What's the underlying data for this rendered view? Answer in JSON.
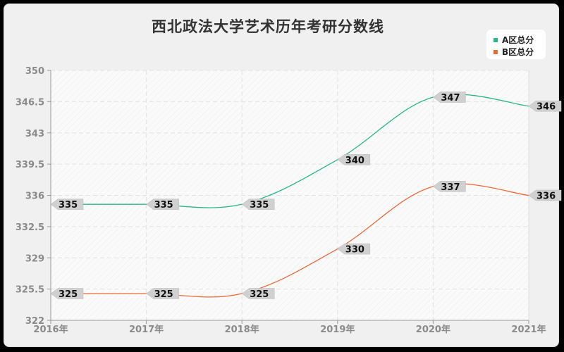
{
  "title": "西北政法大学艺术历年考研分数线",
  "legend": [
    {
      "label": "A区总分",
      "color": "#2bb58a"
    },
    {
      "label": "B区总分",
      "color": "#e86b3c"
    }
  ],
  "chart_data": {
    "type": "line",
    "title": "西北政法大学艺术历年考研分数线",
    "xlabel": "",
    "ylabel": "",
    "categories": [
      "2016年",
      "2017年",
      "2018年",
      "2019年",
      "2020年",
      "2021年"
    ],
    "series": [
      {
        "name": "A区总分",
        "color": "#2bb58a",
        "values": [
          335,
          335,
          335,
          340,
          347,
          346
        ]
      },
      {
        "name": "B区总分",
        "color": "#e86b3c",
        "values": [
          325,
          325,
          325,
          330,
          337,
          336
        ]
      }
    ],
    "ylim": [
      322,
      350
    ],
    "yticks": [
      "350",
      "346.5",
      "343",
      "339.5",
      "336",
      "332.5",
      "329",
      "325.5",
      "322"
    ],
    "grid": true,
    "legend_position": "top-right",
    "smooth": true
  }
}
